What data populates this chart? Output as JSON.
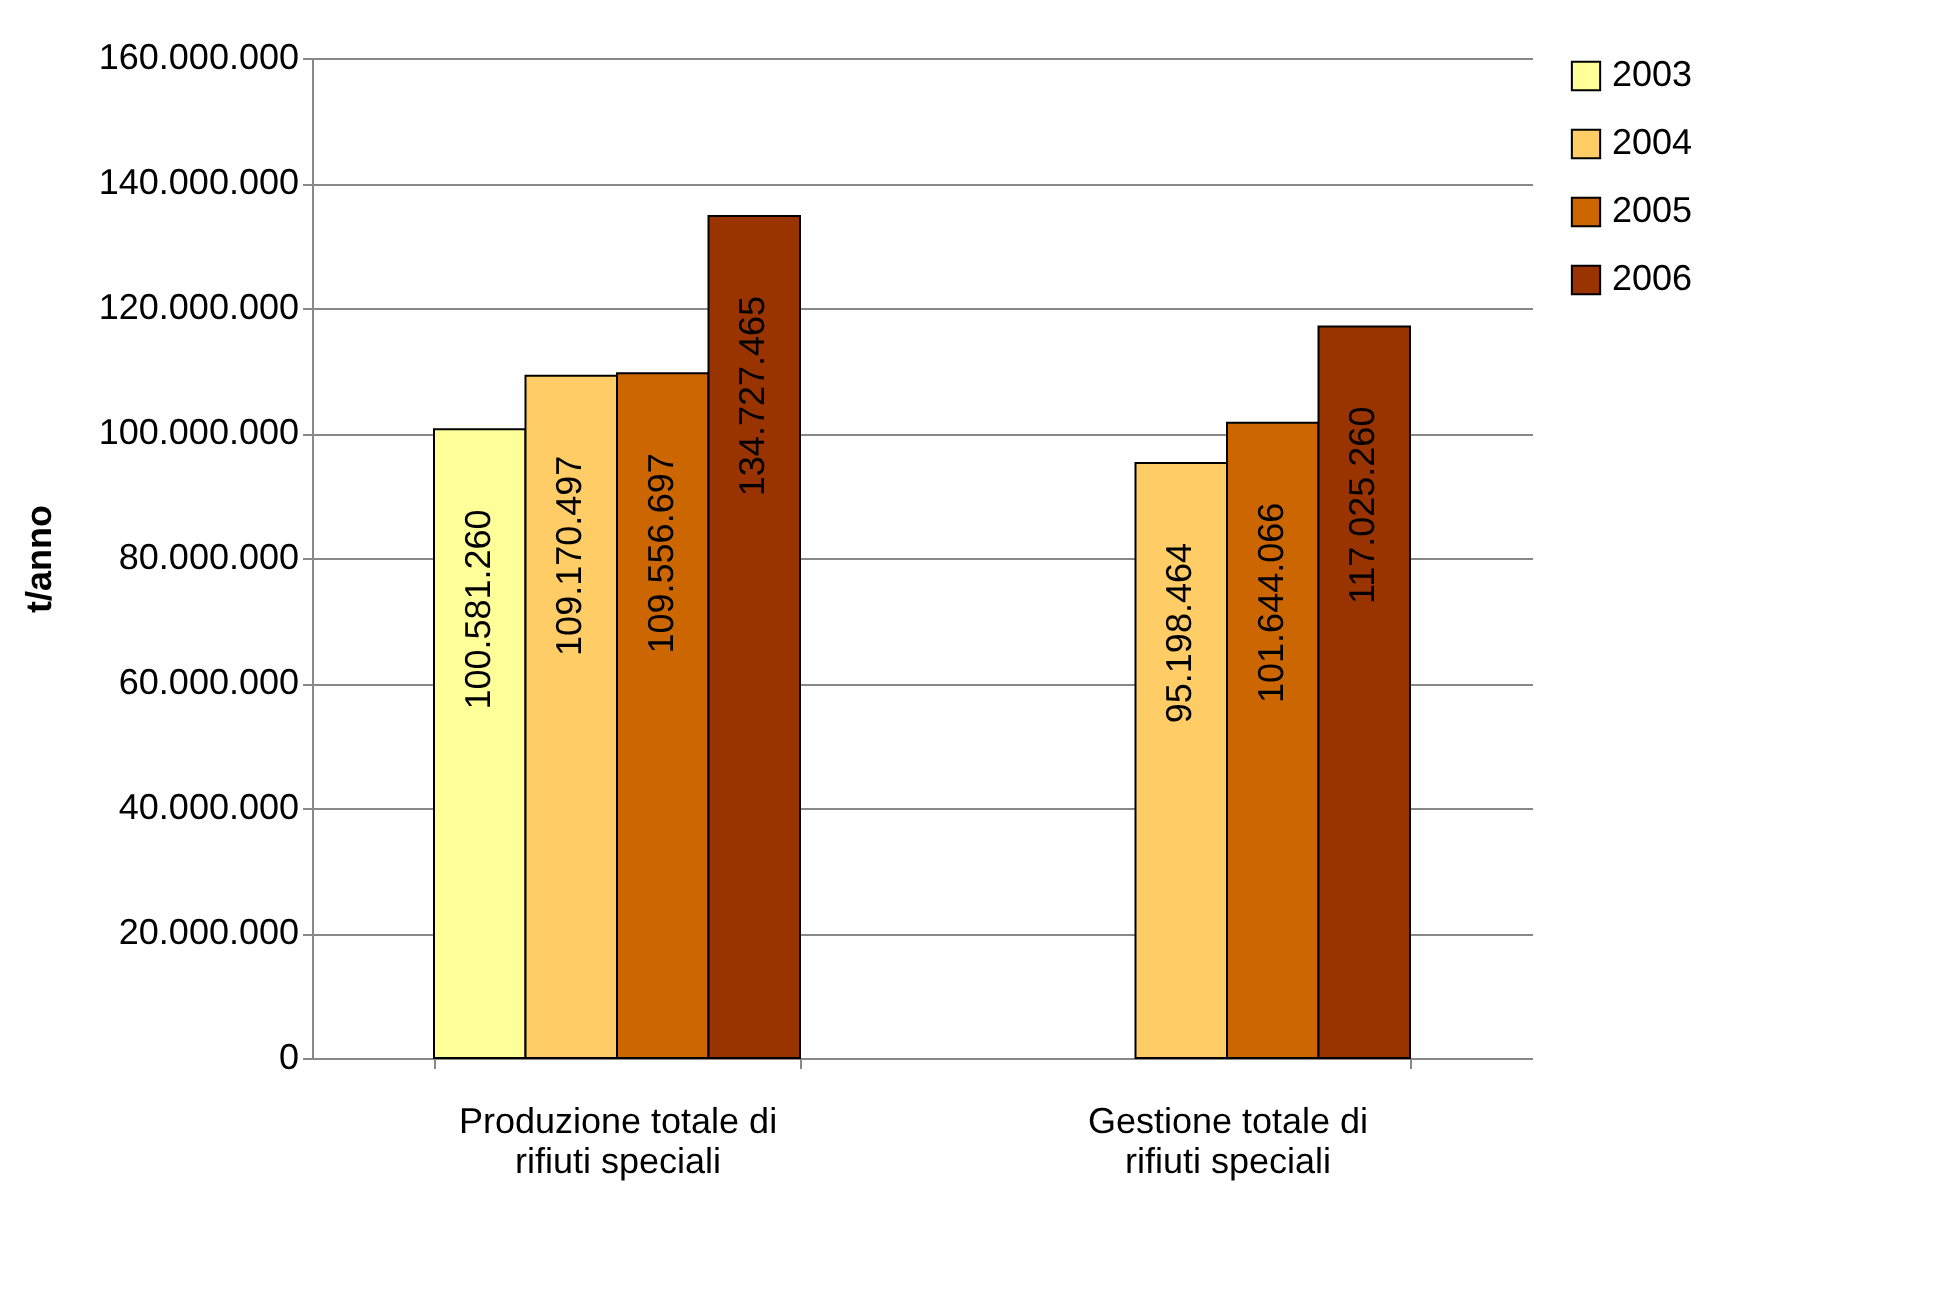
{
  "chart_data": {
    "type": "bar",
    "ylabel": "t/anno",
    "categories": [
      "Produzione totale di rifiuti speciali",
      "Gestione totale di rifiuti speciali"
    ],
    "series": [
      {
        "name": "2003",
        "color": "#ffff99",
        "values": [
          100581260,
          null
        ],
        "value_labels": [
          "100.581.260",
          null
        ]
      },
      {
        "name": "2004",
        "color": "#ffcc66",
        "values": [
          109170497,
          95198464
        ],
        "value_labels": [
          "109.170.497",
          "95.198.464"
        ]
      },
      {
        "name": "2005",
        "color": "#cc6600",
        "values": [
          109556697,
          101644066
        ],
        "value_labels": [
          "109.556.697",
          "101.644.066"
        ]
      },
      {
        "name": "2006",
        "color": "#993300",
        "values": [
          134727465,
          117025260
        ],
        "value_labels": [
          "134.727.465",
          "117.025.260"
        ]
      }
    ],
    "ylim": [
      0,
      160000000
    ],
    "yticks": [
      0,
      {
        "value": 20000000,
        "label": "20.000.000"
      },
      {
        "value": 40000000,
        "label": "40.000.000"
      },
      {
        "value": 60000000,
        "label": "60.000.000"
      },
      {
        "value": 80000000,
        "label": "80.000.000"
      },
      {
        "value": 100000000,
        "label": "100.000.000"
      },
      {
        "value": 120000000,
        "label": "120.000.000"
      },
      {
        "value": 140000000,
        "label": "140.000.000"
      },
      {
        "value": 160000000,
        "label": "160.000.000"
      }
    ],
    "grid": "y",
    "legend": "right"
  }
}
